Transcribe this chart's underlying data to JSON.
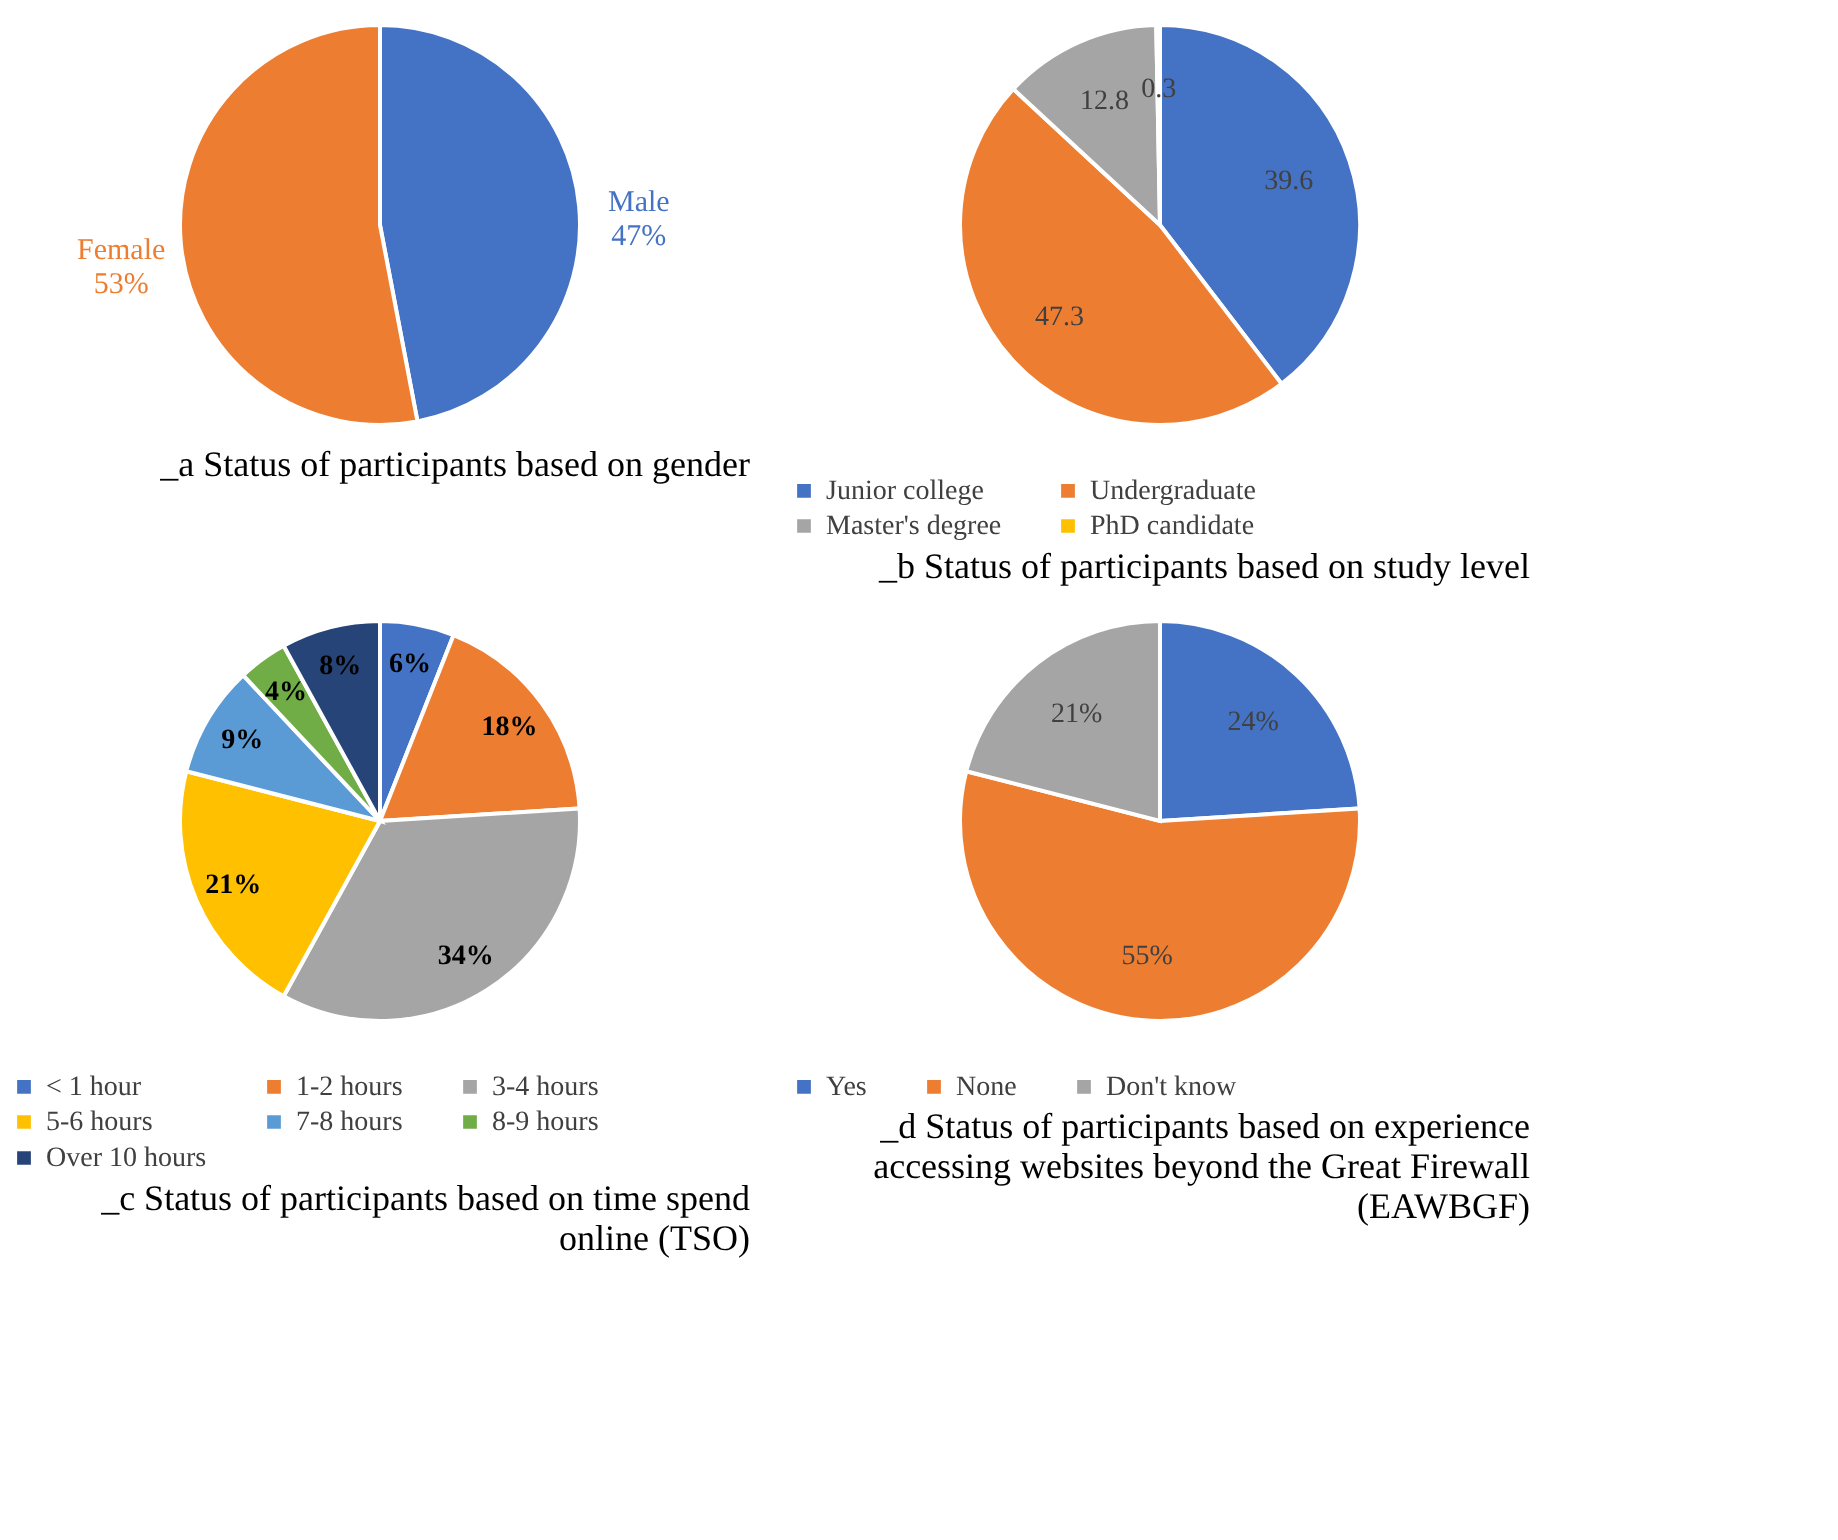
{
  "chart_data": [
    {
      "type": "pie",
      "title": "_a Status of participants based on gender",
      "categories": [
        "Male",
        "Female"
      ],
      "values": [
        47,
        53
      ],
      "colors": [
        "#4472c4",
        "#ed7d31"
      ],
      "value_labels": [
        "47%",
        "53%"
      ],
      "legend": false
    },
    {
      "type": "pie",
      "title": "_b Status of participants based on study level",
      "categories": [
        "Junior college",
        "Undergraduate",
        "Master's degree",
        "PhD candidate"
      ],
      "values": [
        39.6,
        47.3,
        12.8,
        0.3
      ],
      "colors": [
        "#4472c4",
        "#ed7d31",
        "#a5a5a5",
        "#ffc000"
      ],
      "data_labels": true,
      "legend": "bottom"
    },
    {
      "type": "pie",
      "title": "_c Status of participants based on time spend online (TSO)",
      "categories": [
        "< 1 hour",
        "1-2 hours",
        "3-4 hours",
        "5-6 hours",
        "7-8 hours",
        "8-9 hours",
        "Over 10 hours"
      ],
      "values": [
        6,
        18,
        34,
        21,
        9,
        4,
        8
      ],
      "colors": [
        "#4472c4",
        "#ed7d31",
        "#a5a5a5",
        "#ffc000",
        "#5b9bd5",
        "#70ad47",
        "#264478"
      ],
      "value_labels": [
        "6%",
        "18%",
        "34%",
        "21%",
        "9%",
        "4%",
        "8%"
      ],
      "legend": "bottom"
    },
    {
      "type": "pie",
      "title": "_d Status of participants based on experience accessing websites beyond the Great Firewall (EAWBGF)",
      "categories": [
        "Yes",
        "None",
        "Don't know"
      ],
      "values": [
        24,
        55,
        21
      ],
      "colors": [
        "#4472c4",
        "#ed7d31",
        "#a5a5a5"
      ],
      "value_labels": [
        "24%",
        "55%",
        "21%"
      ],
      "legend": "bottom"
    }
  ]
}
